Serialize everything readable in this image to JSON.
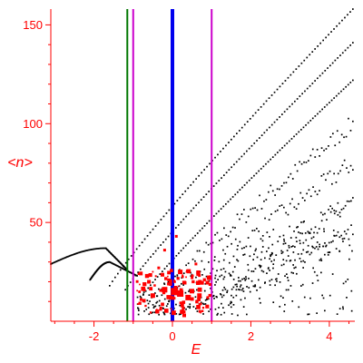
{
  "chart_data": {
    "type": "scatter",
    "xlabel": "E",
    "ylabel": "<n>",
    "xlim": [
      -3.1,
      4.65
    ],
    "ylim": [
      0,
      158
    ],
    "x_ticks": [
      -2,
      0,
      2,
      4
    ],
    "x_tick_labels": [
      "-2",
      "0",
      "2",
      "4"
    ],
    "y_ticks": [
      50,
      100,
      150
    ],
    "y_tick_labels": [
      "50",
      "100",
      "150"
    ],
    "colors": {
      "axes": "#ff0000",
      "points": "#000000",
      "highlight_points": "#ff0000",
      "line_green": "#007700",
      "line_magenta": "#cc00cc",
      "line_blue": "#0000ee"
    },
    "vertical_lines": [
      {
        "x": -1.15,
        "color": "#007700",
        "style": "thin"
      },
      {
        "x": -1.0,
        "color": "#cc00cc",
        "style": "thin"
      },
      {
        "x": 0.0,
        "color": "#0000ee",
        "style": "thick"
      },
      {
        "x": 1.0,
        "color": "#cc00cc",
        "style": "thin"
      }
    ],
    "bands": [
      {
        "x0": -3.1,
        "y0": 29,
        "xm": -1.7,
        "ym": 37,
        "x1": -1.15,
        "y1": 26
      },
      {
        "x0": -2.1,
        "y0": 21,
        "xm": -1.6,
        "ym": 30,
        "x1": -0.9,
        "y1": 23
      },
      {
        "x0": -1.6,
        "y0": 18,
        "x1": 4.6,
        "y1": 158
      },
      {
        "x0": -1.2,
        "y0": 16,
        "x1": 4.6,
        "y1": 141
      },
      {
        "x0": -0.8,
        "y0": 12,
        "x1": 4.6,
        "y1": 122
      },
      {
        "x0": -0.5,
        "y0": 9,
        "x1": 4.6,
        "y1": 100
      },
      {
        "x0": -0.2,
        "y0": 7,
        "x1": 4.6,
        "y1": 80
      },
      {
        "x0": 0.3,
        "y0": 5,
        "x1": 4.6,
        "y1": 60
      },
      {
        "x0": 0.8,
        "y0": 4,
        "x1": 4.6,
        "y1": 44
      }
    ],
    "highlight_points": [
      {
        "x": 0.05,
        "y": 15,
        "s": 8
      },
      {
        "x": 0.2,
        "y": 14,
        "s": 7
      },
      {
        "x": -0.2,
        "y": 16,
        "s": 6
      },
      {
        "x": 0.4,
        "y": 12,
        "s": 6
      },
      {
        "x": 0.2,
        "y": 25,
        "s": 5
      },
      {
        "x": 0.3,
        "y": 3,
        "s": 4
      },
      {
        "x": -0.5,
        "y": 13,
        "s": 5
      },
      {
        "x": 0.7,
        "y": 20,
        "s": 4
      },
      {
        "x": -0.6,
        "y": 20,
        "s": 4
      },
      {
        "x": -0.3,
        "y": 6,
        "s": 3
      },
      {
        "x": 0.9,
        "y": 12,
        "s": 3
      },
      {
        "x": 0.1,
        "y": 43,
        "s": 3
      },
      {
        "x": -0.2,
        "y": 36,
        "s": 3
      },
      {
        "x": 0.6,
        "y": 29,
        "s": 3
      },
      {
        "x": -0.8,
        "y": 11,
        "s": 3
      },
      {
        "x": 0.7,
        "y": 5,
        "s": 3
      },
      {
        "x": 0.5,
        "y": 22,
        "s": 3
      },
      {
        "x": -0.35,
        "y": 27,
        "s": 3
      },
      {
        "x": 0.25,
        "y": 8,
        "s": 4
      },
      {
        "x": -0.1,
        "y": 21,
        "s": 3
      }
    ]
  }
}
